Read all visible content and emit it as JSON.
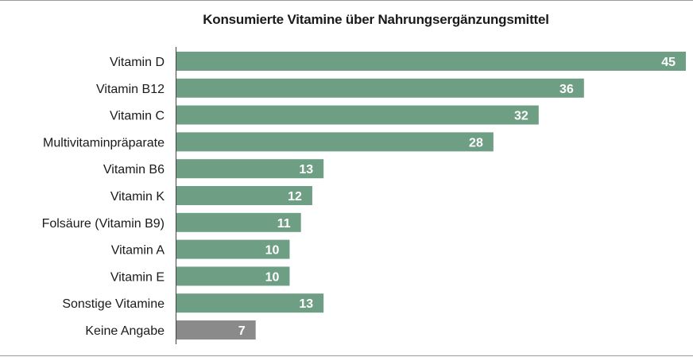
{
  "chart_data": {
    "type": "bar",
    "orientation": "horizontal",
    "title": "Konsumierte Vitamine über Nahrungsergänzungsmittel",
    "categories": [
      "Vitamin D",
      "Vitamin B12",
      "Vitamin C",
      "Multivitaminpräparate",
      "Vitamin B6",
      "Vitamin K",
      "Folsäure (Vitamin B9)",
      "Vitamin A",
      "Vitamin E",
      "Sonstige Vitamine",
      "Keine Angabe"
    ],
    "values": [
      45,
      36,
      32,
      28,
      13,
      12,
      11,
      10,
      10,
      13,
      7
    ],
    "bar_colors": [
      "#6e9e84",
      "#6e9e84",
      "#6e9e84",
      "#6e9e84",
      "#6e9e84",
      "#6e9e84",
      "#6e9e84",
      "#6e9e84",
      "#6e9e84",
      "#6e9e84",
      "#8a8a8a"
    ],
    "xlim": [
      0,
      45
    ],
    "grid": false,
    "legend": "none",
    "data_labels": "inside-end"
  }
}
